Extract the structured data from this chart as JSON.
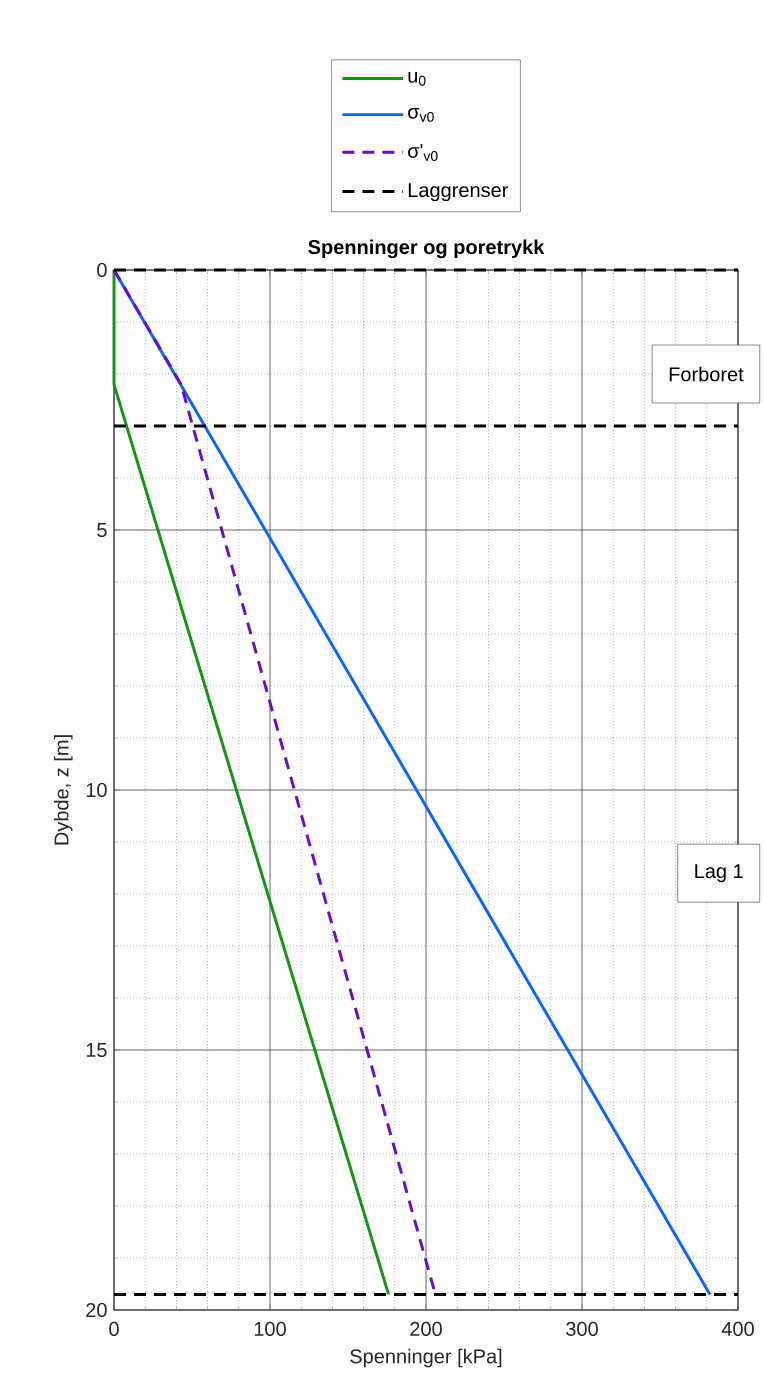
{
  "chart_data": {
    "type": "line",
    "title": "Spenninger og poretrykk",
    "xlabel": "Spenninger [kPa]",
    "ylabel": "Dybde, z [m]",
    "series": [
      {
        "name": "u$_{0}$",
        "color": "#129612",
        "line_style": "solid",
        "x": [
          0,
          0,
          176
        ],
        "values": [
          0,
          2.2,
          19.7
        ]
      },
      {
        "name": "σ$_{v0}$",
        "color": "#0a64ff",
        "line_style": "solid",
        "x": [
          0,
          382
        ],
        "values": [
          0,
          19.7
        ]
      },
      {
        "name": "σ'$_{v0}$",
        "color": "#6a0ccc",
        "line_style": "dashed",
        "x": [
          0,
          43,
          206
        ],
        "values": [
          0,
          2.2,
          19.7
        ]
      },
      {
        "name": "Laggrenser",
        "color": "#000000",
        "line_style": "dashed",
        "x": [
          0,
          400
        ],
        "values": [
          0,
          0
        ]
      },
      {
        "color": "#000000",
        "line_style": "dashed",
        "x": [
          0,
          400
        ],
        "values": [
          3,
          3
        ]
      },
      {
        "color": "#000000",
        "line_style": "dashed",
        "x": [
          0,
          400
        ],
        "values": [
          19.7,
          19.7
        ]
      }
    ],
    "annotations": [
      "Forboret",
      "Lag 1"
    ],
    "xlim": [
      0,
      400
    ],
    "ylim": [
      20,
      0
    ],
    "xticks": [
      0,
      100,
      200,
      300,
      400
    ],
    "yticks": [
      0,
      5,
      10,
      15,
      20
    ],
    "grid": true,
    "legend": "top",
    "marker": "none"
  }
}
